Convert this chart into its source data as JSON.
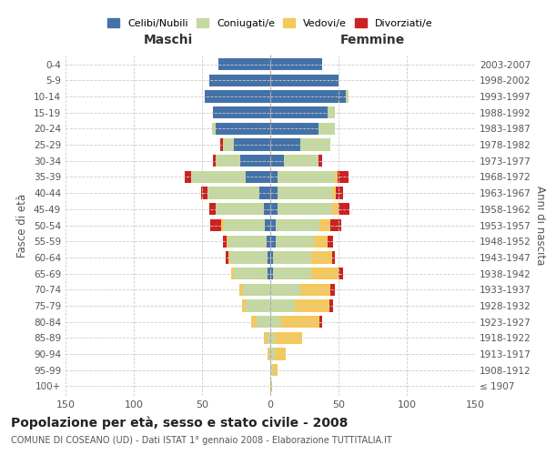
{
  "age_groups": [
    "100+",
    "95-99",
    "90-94",
    "85-89",
    "80-84",
    "75-79",
    "70-74",
    "65-69",
    "60-64",
    "55-59",
    "50-54",
    "45-49",
    "40-44",
    "35-39",
    "30-34",
    "25-29",
    "20-24",
    "15-19",
    "10-14",
    "5-9",
    "0-4"
  ],
  "birth_years": [
    "≤ 1907",
    "1908-1912",
    "1913-1917",
    "1918-1922",
    "1923-1927",
    "1928-1932",
    "1933-1937",
    "1938-1942",
    "1943-1947",
    "1948-1952",
    "1953-1957",
    "1958-1962",
    "1963-1967",
    "1968-1972",
    "1973-1977",
    "1978-1982",
    "1983-1987",
    "1988-1992",
    "1993-1997",
    "1998-2002",
    "2003-2007"
  ],
  "males": {
    "celibi": [
      0,
      0,
      0,
      0,
      0,
      0,
      0,
      2,
      2,
      3,
      4,
      5,
      8,
      18,
      22,
      27,
      40,
      42,
      48,
      45,
      38
    ],
    "coniugati": [
      0,
      0,
      1,
      2,
      10,
      18,
      20,
      25,
      28,
      28,
      30,
      35,
      38,
      40,
      18,
      8,
      3,
      0,
      0,
      0,
      0
    ],
    "vedovi": [
      0,
      0,
      1,
      3,
      4,
      3,
      3,
      2,
      1,
      1,
      2,
      0,
      0,
      0,
      0,
      0,
      0,
      0,
      0,
      0,
      0
    ],
    "divorziati": [
      0,
      0,
      0,
      0,
      0,
      0,
      0,
      0,
      2,
      3,
      8,
      5,
      5,
      5,
      2,
      2,
      0,
      0,
      0,
      0,
      0
    ]
  },
  "females": {
    "nubili": [
      0,
      0,
      0,
      0,
      0,
      0,
      0,
      2,
      2,
      4,
      4,
      5,
      5,
      5,
      10,
      22,
      35,
      42,
      55,
      50,
      38
    ],
    "coniugate": [
      0,
      2,
      3,
      3,
      8,
      18,
      22,
      28,
      28,
      28,
      32,
      40,
      40,
      42,
      25,
      22,
      12,
      5,
      2,
      0,
      0
    ],
    "vedove": [
      1,
      3,
      8,
      20,
      28,
      25,
      22,
      20,
      15,
      10,
      8,
      5,
      3,
      2,
      0,
      0,
      0,
      0,
      0,
      0,
      0
    ],
    "divorziate": [
      0,
      0,
      0,
      0,
      2,
      3,
      3,
      3,
      2,
      4,
      8,
      8,
      5,
      8,
      3,
      0,
      0,
      0,
      0,
      0,
      0
    ]
  },
  "colors": {
    "celibi": "#4472a8",
    "coniugati": "#c5d8a0",
    "vedovi": "#f5c85c",
    "divorziati": "#cc2222"
  },
  "title": "Popolazione per età, sesso e stato civile - 2008",
  "subtitle": "COMUNE DI COSEANO (UD) - Dati ISTAT 1° gennaio 2008 - Elaborazione TUTTITALIA.IT",
  "xlabel_left": "Maschi",
  "xlabel_right": "Femmine",
  "ylabel_left": "Fasce di età",
  "ylabel_right": "Anni di nascita",
  "xlim": 150,
  "bg_color": "#ffffff",
  "grid_color": "#cccccc"
}
